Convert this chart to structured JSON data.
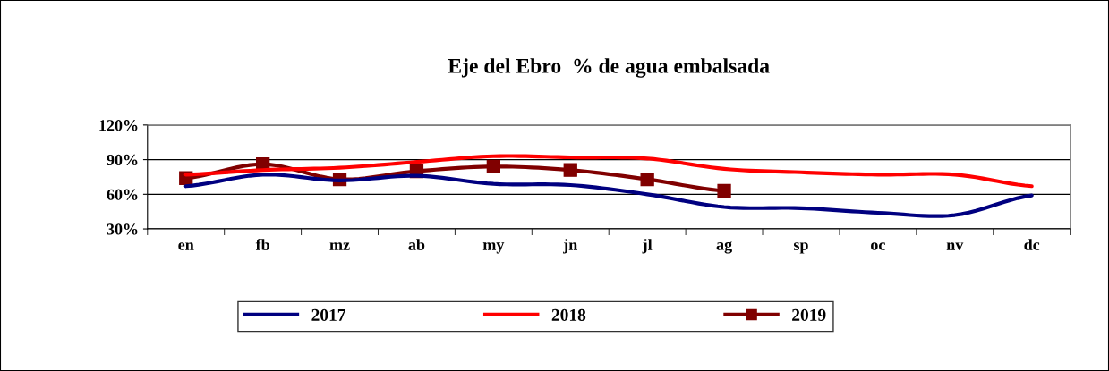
{
  "chart_data": {
    "type": "line",
    "title": "Eje del Ebro  % de agua embalsada",
    "categories": [
      "en",
      "fb",
      "mz",
      "ab",
      "my",
      "jn",
      "jl",
      "ag",
      "sp",
      "oc",
      "nv",
      "dc"
    ],
    "series": [
      {
        "name": "2017",
        "color": "#000080",
        "values": [
          67,
          77,
          72,
          76,
          69,
          68,
          60,
          49,
          48,
          44,
          42,
          59
        ],
        "marker": "none"
      },
      {
        "name": "2018",
        "color": "#ff0000",
        "values": [
          77,
          81,
          83,
          88,
          93,
          92,
          91,
          82,
          79,
          77,
          77,
          67
        ],
        "marker": "none"
      },
      {
        "name": "2019",
        "color": "#800000",
        "values": [
          74,
          86,
          73,
          80,
          84,
          81,
          73,
          63,
          null,
          null,
          null,
          null
        ],
        "marker": "square"
      }
    ],
    "ylim": [
      30,
      120
    ],
    "yticks": [
      {
        "value": 30,
        "label": "30%"
      },
      {
        "value": 60,
        "label": "60%"
      },
      {
        "value": 90,
        "label": "90%"
      },
      {
        "value": 120,
        "label": "120%"
      }
    ],
    "grid": "y",
    "legend": "bottom",
    "line_style": "solid"
  }
}
